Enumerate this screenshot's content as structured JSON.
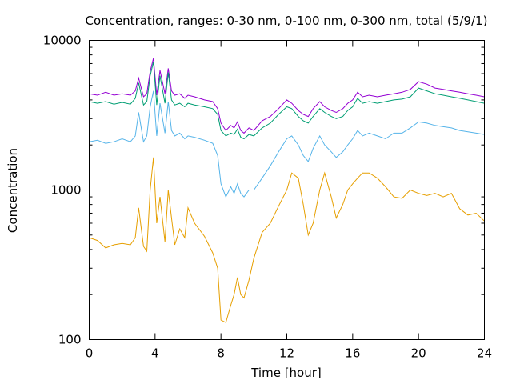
{
  "chart_data": {
    "type": "line",
    "title": "Concentration, ranges: 0-30 nm, 0-100 nm, 0-300 nm, total (5/9/1)",
    "xlabel": "Time [hour]",
    "ylabel": "Concentration",
    "x_range": [
      0,
      24
    ],
    "y_range": [
      100,
      10000
    ],
    "y_scale": "log",
    "x_ticks": [
      0,
      4,
      8,
      12,
      16,
      20,
      24
    ],
    "x_tick_labels": [
      "0",
      "4",
      "8",
      "12",
      "16",
      "20",
      "24"
    ],
    "y_ticks": [
      100,
      1000,
      10000
    ],
    "y_tick_labels": [
      "100",
      "1000",
      "10000"
    ],
    "grid": false,
    "legend": "none",
    "series": [
      {
        "color": "#9400d3",
        "x": [
          0,
          0.5,
          1,
          1.5,
          2,
          2.5,
          2.8,
          3,
          3.3,
          3.5,
          3.7,
          3.9,
          4.1,
          4.3,
          4.6,
          4.8,
          5,
          5.2,
          5.5,
          5.8,
          6,
          6.4,
          7,
          7.5,
          7.8,
          8,
          8.3,
          8.6,
          8.8,
          9,
          9.2,
          9.4,
          9.7,
          10,
          10.5,
          11,
          11.5,
          12,
          12.3,
          12.7,
          13,
          13.3,
          13.6,
          14,
          14.3,
          14.7,
          15,
          15.4,
          15.7,
          16,
          16.3,
          16.6,
          17,
          17.5,
          18,
          18.5,
          19,
          19.5,
          20,
          20.5,
          21,
          21.5,
          22,
          22.5,
          23,
          23.5,
          24
        ],
        "y": [
          4400,
          4300,
          4500,
          4300,
          4400,
          4300,
          4600,
          5600,
          4200,
          4400,
          6200,
          7600,
          4300,
          6300,
          4400,
          6500,
          4600,
          4300,
          4400,
          4100,
          4300,
          4200,
          4000,
          3900,
          3500,
          2800,
          2500,
          2700,
          2600,
          2850,
          2500,
          2400,
          2600,
          2500,
          2900,
          3100,
          3500,
          4000,
          3800,
          3400,
          3200,
          3100,
          3500,
          3900,
          3600,
          3400,
          3300,
          3500,
          3800,
          4000,
          4500,
          4200,
          4300,
          4200,
          4300,
          4400,
          4500,
          4700,
          5300,
          5100,
          4800,
          4700,
          4600,
          4500,
          4400,
          4300,
          4200
        ]
      },
      {
        "color": "#009e73",
        "x": [
          0,
          0.5,
          1,
          1.5,
          2,
          2.5,
          2.8,
          3,
          3.3,
          3.5,
          3.7,
          3.9,
          4.1,
          4.3,
          4.6,
          4.8,
          5,
          5.2,
          5.5,
          5.8,
          6,
          6.4,
          7,
          7.5,
          7.8,
          8,
          8.3,
          8.6,
          8.8,
          9,
          9.2,
          9.4,
          9.7,
          10,
          10.5,
          11,
          11.5,
          12,
          12.3,
          12.7,
          13,
          13.3,
          13.6,
          14,
          14.3,
          14.7,
          15,
          15.4,
          15.7,
          16,
          16.3,
          16.6,
          17,
          17.5,
          18,
          18.5,
          19,
          19.5,
          20,
          20.5,
          21,
          21.5,
          22,
          22.5,
          23,
          23.5,
          24
        ],
        "y": [
          3900,
          3800,
          3900,
          3750,
          3850,
          3750,
          4100,
          5200,
          3700,
          3900,
          5800,
          7200,
          3700,
          5800,
          3800,
          6100,
          4000,
          3700,
          3800,
          3600,
          3800,
          3700,
          3600,
          3500,
          3200,
          2500,
          2300,
          2400,
          2350,
          2550,
          2250,
          2200,
          2350,
          2300,
          2600,
          2800,
          3200,
          3600,
          3500,
          3100,
          2900,
          2800,
          3100,
          3500,
          3300,
          3100,
          3000,
          3100,
          3400,
          3600,
          4100,
          3800,
          3900,
          3800,
          3900,
          4000,
          4050,
          4200,
          4800,
          4600,
          4400,
          4300,
          4200,
          4100,
          4000,
          3900,
          3800
        ]
      },
      {
        "color": "#56b4e9",
        "x": [
          0,
          0.5,
          1,
          1.5,
          2,
          2.5,
          2.8,
          3,
          3.3,
          3.5,
          3.7,
          3.9,
          4.1,
          4.3,
          4.6,
          4.8,
          5,
          5.2,
          5.5,
          5.8,
          6,
          6.4,
          7,
          7.5,
          7.8,
          8,
          8.3,
          8.6,
          8.8,
          9,
          9.2,
          9.4,
          9.7,
          10,
          10.5,
          11,
          11.5,
          12,
          12.3,
          12.7,
          13,
          13.3,
          13.6,
          14,
          14.3,
          14.7,
          15,
          15.4,
          15.7,
          16,
          16.3,
          16.6,
          17,
          17.5,
          18,
          18.5,
          19,
          19.5,
          20,
          20.5,
          21,
          21.5,
          22,
          22.5,
          23,
          23.5,
          24
        ],
        "y": [
          2100,
          2150,
          2050,
          2100,
          2200,
          2100,
          2300,
          3300,
          2100,
          2300,
          3600,
          4600,
          2300,
          3800,
          2400,
          3900,
          2500,
          2300,
          2400,
          2200,
          2300,
          2250,
          2150,
          2050,
          1700,
          1100,
          900,
          1050,
          950,
          1100,
          950,
          900,
          1000,
          1000,
          1200,
          1450,
          1800,
          2200,
          2300,
          2000,
          1700,
          1550,
          1900,
          2300,
          2000,
          1800,
          1650,
          1800,
          2000,
          2200,
          2500,
          2300,
          2400,
          2300,
          2200,
          2400,
          2400,
          2600,
          2850,
          2800,
          2700,
          2650,
          2600,
          2500,
          2450,
          2400,
          2350
        ]
      },
      {
        "color": "#e69f00",
        "x": [
          0,
          0.5,
          1,
          1.5,
          2,
          2.5,
          2.8,
          3,
          3.3,
          3.5,
          3.7,
          3.9,
          4.1,
          4.3,
          4.6,
          4.8,
          5,
          5.2,
          5.5,
          5.8,
          6,
          6.4,
          7,
          7.5,
          7.8,
          8,
          8.3,
          8.6,
          8.8,
          9,
          9.2,
          9.4,
          9.7,
          10,
          10.5,
          11,
          11.5,
          12,
          12.3,
          12.7,
          13,
          13.3,
          13.6,
          14,
          14.3,
          14.7,
          15,
          15.4,
          15.7,
          16,
          16.3,
          16.6,
          17,
          17.5,
          18,
          18.5,
          19,
          19.5,
          20,
          20.5,
          21,
          21.5,
          22,
          22.5,
          23,
          23.5,
          24
        ],
        "y": [
          480,
          460,
          410,
          430,
          440,
          430,
          480,
          760,
          420,
          390,
          1000,
          1650,
          600,
          900,
          450,
          1000,
          650,
          430,
          550,
          480,
          760,
          600,
          490,
          380,
          300,
          135,
          130,
          170,
          200,
          260,
          200,
          190,
          250,
          350,
          520,
          600,
          780,
          1000,
          1300,
          1200,
          800,
          500,
          600,
          1000,
          1300,
          900,
          650,
          800,
          1000,
          1100,
          1200,
          1300,
          1300,
          1200,
          1050,
          900,
          880,
          1000,
          950,
          920,
          950,
          900,
          950,
          750,
          680,
          700,
          620
        ]
      }
    ]
  }
}
